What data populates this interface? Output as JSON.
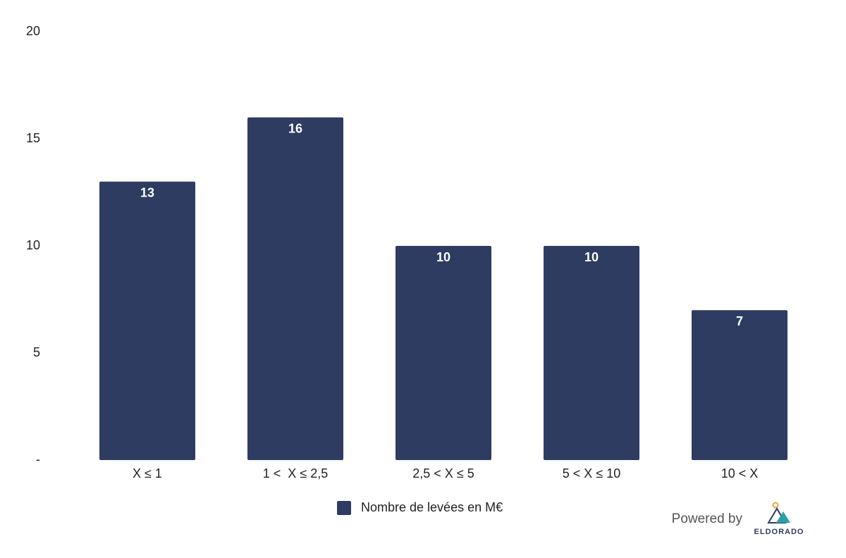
{
  "chart_data": {
    "type": "bar",
    "categories": [
      "X ≤ 1",
      "1 <  X ≤ 2,5",
      "2,5 < X ≤ 5",
      "5 < X ≤ 10",
      "10 < X"
    ],
    "series": [
      {
        "name": "Nombre de levées en M€",
        "color": "#2e3c62",
        "values": [
          13,
          16,
          10,
          10,
          7
        ]
      }
    ],
    "ylim": [
      0,
      20
    ],
    "yticks": [
      {
        "value": 0,
        "label": "-"
      },
      5,
      10,
      15,
      20
    ],
    "grid": false,
    "legend": "bottom"
  },
  "branding": {
    "powered_by": "Powered by",
    "brand": "ELDORADO"
  }
}
